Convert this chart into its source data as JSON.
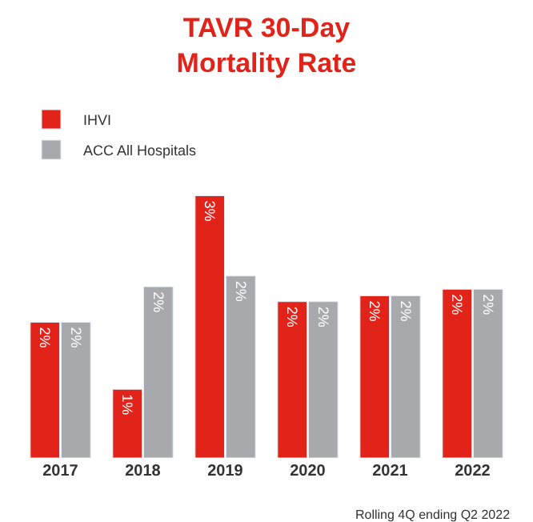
{
  "chart_data": {
    "type": "bar",
    "title": "TAVR 30-Day\nMortality Rate",
    "tick_labels": "x",
    "categories": [
      "2017",
      "2018",
      "2019",
      "2020",
      "2021",
      "2022"
    ],
    "series": [
      {
        "name": "IHVI",
        "color": "#e2231a",
        "values": [
          1.64,
          0.83,
          3.17,
          1.89,
          1.96,
          2.04
        ],
        "value_labels": [
          "2%",
          "1%",
          "3%",
          "2%",
          "2%",
          "2%"
        ]
      },
      {
        "name": "ACC All Hospitals",
        "color": "#a7a9ac",
        "values": [
          1.64,
          2.07,
          2.2,
          1.89,
          1.96,
          2.04
        ],
        "value_labels": [
          "2%",
          "2%",
          "2%",
          "2%",
          "2%",
          "2%"
        ]
      }
    ],
    "legend": "top left",
    "annotations": [
      "Rolling 4Q ending Q2 2022"
    ]
  }
}
